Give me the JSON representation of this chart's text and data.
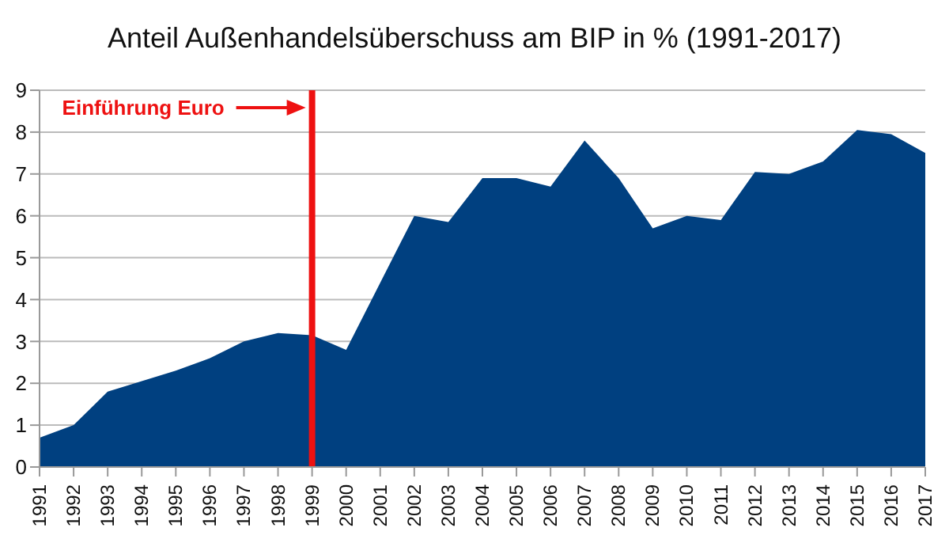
{
  "chart_data": {
    "type": "area",
    "title": "Anteil Außenhandelsüberschuss am BIP in % (1991-2017)",
    "x": [
      1991,
      1992,
      1993,
      1994,
      1995,
      1996,
      1997,
      1998,
      1999,
      2000,
      2001,
      2002,
      2003,
      2004,
      2005,
      2006,
      2007,
      2008,
      2009,
      2010,
      2011,
      2012,
      2013,
      2014,
      2015,
      2016,
      2017
    ],
    "series": [
      {
        "color": "#004080",
        "values": [
          0.7,
          1.0,
          1.8,
          2.05,
          2.3,
          2.6,
          3.0,
          3.2,
          3.15,
          2.8,
          4.4,
          6.0,
          5.85,
          6.9,
          6.9,
          6.7,
          7.8,
          6.9,
          5.7,
          6.0,
          5.9,
          7.05,
          7.0,
          7.3,
          8.05,
          7.95,
          7.5
        ]
      }
    ],
    "xlim": [
      1991,
      2017
    ],
    "xticks": [
      1991,
      1992,
      1993,
      1994,
      1995,
      1996,
      1997,
      1998,
      1999,
      2000,
      2001,
      2002,
      2003,
      2004,
      2005,
      2006,
      2007,
      2008,
      2009,
      2010,
      2011,
      2012,
      2013,
      2014,
      2015,
      2016,
      2017
    ],
    "ylim": [
      0,
      9
    ],
    "yticks": [
      0,
      1,
      2,
      3,
      4,
      5,
      6,
      7,
      8,
      9
    ],
    "grid": "y",
    "ref_lines": [
      {
        "axis": "x",
        "value": 1999,
        "label": "Einführung Euro",
        "color": "#ee1111"
      }
    ]
  }
}
